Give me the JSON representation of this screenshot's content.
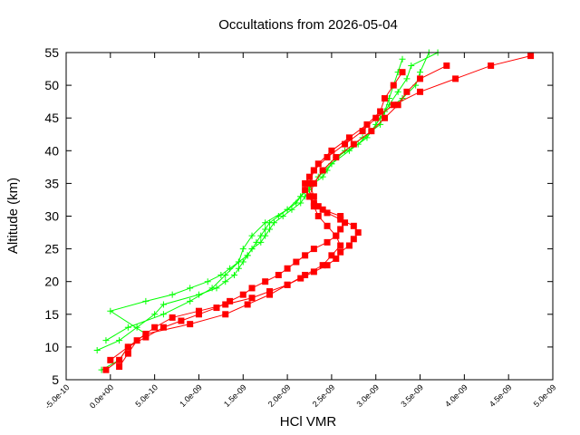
{
  "chart_data": {
    "type": "line",
    "title": "Occultations from 2026-05-04",
    "xlabel": "HCl VMR",
    "ylabel": "Altitude (km)",
    "xlim": [
      -5e-10,
      5e-09
    ],
    "ylim": [
      5,
      55
    ],
    "grid": false,
    "legend": "none",
    "x_ticks": [
      {
        "value": -5e-10,
        "label": "-5.0e-10"
      },
      {
        "value": 0,
        "label": "0.0e+00"
      },
      {
        "value": 5e-10,
        "label": "5.0e-10"
      },
      {
        "value": 1e-09,
        "label": "1.0e-09"
      },
      {
        "value": 1.5e-09,
        "label": "1.5e-09"
      },
      {
        "value": 2e-09,
        "label": "2.0e-09"
      },
      {
        "value": 2.5e-09,
        "label": "2.5e-09"
      },
      {
        "value": 3e-09,
        "label": "3.0e-09"
      },
      {
        "value": 3.5e-09,
        "label": "3.5e-09"
      },
      {
        "value": 4e-09,
        "label": "4.0e-09"
      },
      {
        "value": 4.5e-09,
        "label": "4.5e-09"
      },
      {
        "value": 5e-09,
        "label": "5.0e-09"
      }
    ],
    "y_ticks": [
      {
        "value": 5,
        "label": "5"
      },
      {
        "value": 10,
        "label": "10"
      },
      {
        "value": 15,
        "label": "15"
      },
      {
        "value": 20,
        "label": "20"
      },
      {
        "value": 25,
        "label": "25"
      },
      {
        "value": 30,
        "label": "30"
      },
      {
        "value": 35,
        "label": "35"
      },
      {
        "value": 40,
        "label": "40"
      },
      {
        "value": 45,
        "label": "45"
      },
      {
        "value": 50,
        "label": "50"
      },
      {
        "value": 55,
        "label": "55"
      }
    ],
    "colors": {
      "green_series": "#00ff00",
      "red_series": "#ff0000",
      "axis": "#000000"
    },
    "series": [
      {
        "marker": "plus",
        "color": "#00ff00",
        "y": [
          6.5,
          8,
          10,
          12,
          15.5,
          17,
          18,
          19,
          20,
          21,
          22,
          23,
          24,
          25,
          26,
          27,
          28,
          29,
          30,
          31,
          32,
          33,
          34,
          35,
          36,
          37,
          38,
          40,
          42,
          44,
          46,
          48,
          50,
          52,
          54
        ],
        "x": [
          -1e-10,
          1e-10,
          2e-10,
          4e-10,
          0,
          4e-10,
          7e-10,
          9e-10,
          1.1e-09,
          1.25e-09,
          1.35e-09,
          1.45e-09,
          1.55e-09,
          1.6e-09,
          1.65e-09,
          1.7e-09,
          1.75e-09,
          1.8e-09,
          1.9e-09,
          2e-09,
          2.1e-09,
          2.15e-09,
          2.2e-09,
          2.3e-09,
          2.4e-09,
          2.45e-09,
          2.5e-09,
          2.7e-09,
          2.9e-09,
          3e-09,
          3.1e-09,
          3.15e-09,
          3.2e-09,
          3.25e-09,
          3.3e-09
        ]
      },
      {
        "marker": "plus",
        "color": "#00ff00",
        "y": [
          9.5,
          11,
          13,
          15,
          16.5,
          18,
          19,
          20,
          21,
          22,
          23,
          24,
          25,
          26,
          27,
          28,
          29,
          30,
          31,
          32,
          33,
          34,
          36,
          38,
          40,
          42,
          44,
          46,
          48,
          50,
          52,
          55
        ],
        "x": [
          -1.5e-10,
          1e-10,
          3e-10,
          5e-10,
          6e-10,
          1e-09,
          1.2e-09,
          1.3e-09,
          1.4e-09,
          1.45e-09,
          1.5e-09,
          1.55e-09,
          1.6e-09,
          1.7e-09,
          1.75e-09,
          1.8e-09,
          1.85e-09,
          1.95e-09,
          2.05e-09,
          2.15e-09,
          2.2e-09,
          2.25e-09,
          2.35e-09,
          2.5e-09,
          2.65e-09,
          2.85e-09,
          3.05e-09,
          3.1e-09,
          3.3e-09,
          3.45e-09,
          3.5e-09,
          3.6e-09
        ]
      },
      {
        "marker": "plus",
        "color": "#00ff00",
        "y": [
          11,
          13,
          15,
          17,
          19,
          21,
          23,
          25,
          27,
          29,
          31,
          33,
          35,
          37,
          39,
          41,
          43,
          45,
          47,
          49,
          51,
          53,
          55
        ],
        "x": [
          -5e-11,
          2e-10,
          6e-10,
          9e-10,
          1.15e-09,
          1.3e-09,
          1.45e-09,
          1.5e-09,
          1.6e-09,
          1.75e-09,
          2e-09,
          2.15e-09,
          2.3e-09,
          2.4e-09,
          2.55e-09,
          2.8e-09,
          2.95e-09,
          3.05e-09,
          3.15e-09,
          3.25e-09,
          3.35e-09,
          3.4e-09,
          3.7e-09
        ]
      },
      {
        "marker": "square",
        "color": "#ff0000",
        "y": [
          6.5,
          8,
          10,
          11.5,
          13,
          14,
          15,
          16,
          17,
          18,
          19,
          20,
          21,
          22,
          23,
          24,
          25,
          26,
          27,
          28,
          29,
          30,
          31,
          32,
          33,
          34,
          35,
          36,
          37,
          38,
          40,
          42,
          44,
          46,
          48,
          50,
          52
        ],
        "x": [
          -5e-11,
          1e-10,
          2e-10,
          4e-10,
          6e-10,
          8e-10,
          1e-09,
          1.2e-09,
          1.35e-09,
          1.5e-09,
          1.6e-09,
          1.75e-09,
          1.9e-09,
          2e-09,
          2.1e-09,
          2.2e-09,
          2.3e-09,
          2.45e-09,
          2.55e-09,
          2.6e-09,
          2.65e-09,
          2.6e-09,
          2.4e-09,
          2.3e-09,
          2.25e-09,
          2.2e-09,
          2.2e-09,
          2.25e-09,
          2.3e-09,
          2.35e-09,
          2.5e-09,
          2.7e-09,
          2.9e-09,
          3.05e-09,
          3.1e-09,
          3.2e-09,
          3.3e-09
        ]
      },
      {
        "marker": "square",
        "color": "#ff0000",
        "y": [
          7,
          9,
          11,
          13,
          14.5,
          15.5,
          16.5,
          17.5,
          18.5,
          19.5,
          20.5,
          21.5,
          22.5,
          23.5,
          24.5,
          25.5,
          26.5,
          27.5,
          28.5,
          29.5,
          30.5,
          31.5,
          33,
          35,
          37,
          39,
          41,
          43,
          45,
          47,
          49,
          51,
          53,
          54.5
        ],
        "x": [
          1e-10,
          2e-10,
          3e-10,
          5e-10,
          7e-10,
          1e-09,
          1.3e-09,
          1.6e-09,
          1.8e-09,
          2e-09,
          2.15e-09,
          2.3e-09,
          2.45e-09,
          2.55e-09,
          2.6e-09,
          2.7e-09,
          2.75e-09,
          2.8e-09,
          2.75e-09,
          2.6e-09,
          2.45e-09,
          2.35e-09,
          2.3e-09,
          2.25e-09,
          2.3e-09,
          2.45e-09,
          2.65e-09,
          2.85e-09,
          3e-09,
          3.2e-09,
          3.5e-09,
          3.9e-09,
          4.3e-09,
          4.75e-09
        ]
      },
      {
        "marker": "square",
        "color": "#ff0000",
        "y": [
          8,
          10,
          12,
          13.5,
          15,
          16.5,
          18,
          19.5,
          21,
          22.5,
          24,
          25.5,
          27,
          28.5,
          30,
          31.5,
          33,
          35,
          37,
          39,
          41,
          43,
          45,
          47,
          49,
          51,
          53
        ],
        "x": [
          0,
          2e-10,
          4e-10,
          9e-10,
          1.3e-09,
          1.55e-09,
          1.8e-09,
          2e-09,
          2.2e-09,
          2.4e-09,
          2.5e-09,
          2.6e-09,
          2.55e-09,
          2.45e-09,
          2.35e-09,
          2.3e-09,
          2.25e-09,
          2.3e-09,
          2.4e-09,
          2.55e-09,
          2.75e-09,
          2.95e-09,
          3.1e-09,
          3.25e-09,
          3.35e-09,
          3.5e-09,
          3.8e-09
        ]
      }
    ]
  }
}
